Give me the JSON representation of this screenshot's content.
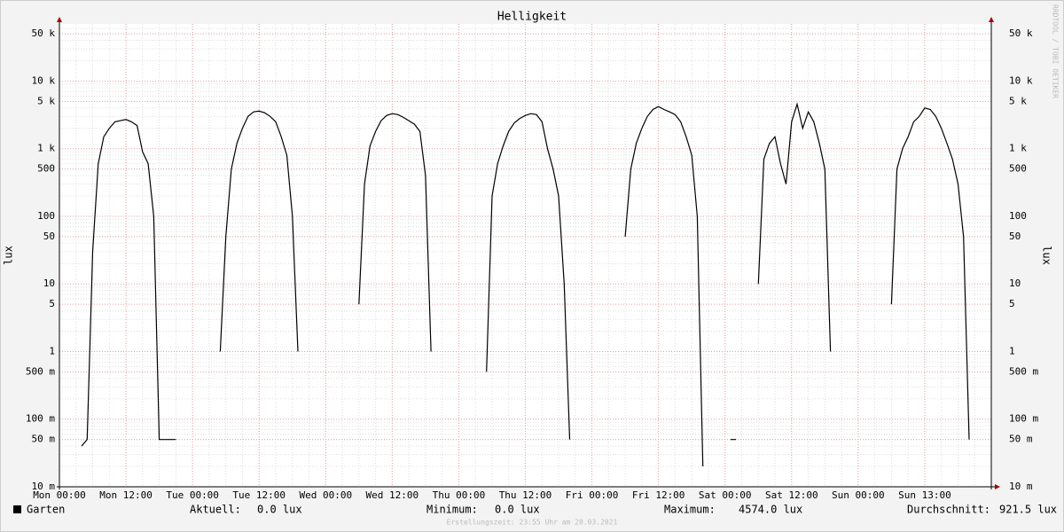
{
  "chart_data": {
    "type": "line",
    "title": "Helligkeit",
    "y_label": "lux",
    "y2_label": "lux",
    "log_y": true,
    "grid": true,
    "ylim": [
      0.01,
      70000
    ],
    "yticks": [
      {
        "value": 0.01,
        "label": "10 m"
      },
      {
        "value": 0.05,
        "label": "50 m"
      },
      {
        "value": 0.1,
        "label": "100 m"
      },
      {
        "value": 0.5,
        "label": "500 m"
      },
      1,
      5,
      10,
      50,
      100,
      500,
      {
        "value": 1000,
        "label": "1 k"
      },
      {
        "value": 5000,
        "label": "5 k"
      },
      {
        "value": 10000,
        "label": "10 k"
      },
      {
        "value": 50000,
        "label": "50 k"
      }
    ],
    "xlim": [
      0,
      168
    ],
    "xticks": [
      {
        "value": 0,
        "label": "Mon 00:00"
      },
      {
        "value": 12,
        "label": "Mon 12:00"
      },
      {
        "value": 24,
        "label": "Tue 00:00"
      },
      {
        "value": 36,
        "label": "Tue 12:00"
      },
      {
        "value": 48,
        "label": "Wed 00:00"
      },
      {
        "value": 60,
        "label": "Wed 12:00"
      },
      {
        "value": 72,
        "label": "Thu 00:00"
      },
      {
        "value": 84,
        "label": "Thu 12:00"
      },
      {
        "value": 96,
        "label": "Fri 00:00"
      },
      {
        "value": 108,
        "label": "Fri 12:00"
      },
      {
        "value": 120,
        "label": "Sat 00:00"
      },
      {
        "value": 132,
        "label": "Sat 12:00"
      },
      {
        "value": 144,
        "label": "Sun 00:00"
      },
      {
        "value": 156,
        "label": "Sun 13:00"
      }
    ],
    "x": [
      0,
      1,
      2,
      3,
      4,
      5,
      6,
      7,
      8,
      9,
      10,
      11,
      12,
      13,
      14,
      15,
      16,
      17,
      18,
      19,
      20,
      21,
      22,
      23,
      24,
      25,
      26,
      27,
      28,
      29,
      30,
      31,
      32,
      33,
      34,
      35,
      36,
      37,
      38,
      39,
      40,
      41,
      42,
      43,
      44,
      45,
      46,
      47,
      48,
      49,
      50,
      51,
      52,
      53,
      54,
      55,
      56,
      57,
      58,
      59,
      60,
      61,
      62,
      63,
      64,
      65,
      66,
      67,
      68,
      69,
      70,
      71,
      72,
      73,
      74,
      75,
      76,
      77,
      78,
      79,
      80,
      81,
      82,
      83,
      84,
      85,
      86,
      87,
      88,
      89,
      90,
      91,
      92,
      93,
      94,
      95,
      96,
      97,
      98,
      99,
      100,
      101,
      102,
      103,
      104,
      105,
      106,
      107,
      108,
      109,
      110,
      111,
      112,
      113,
      114,
      115,
      116,
      117,
      118,
      119,
      120,
      121,
      122,
      123,
      124,
      125,
      126,
      127,
      128,
      129,
      130,
      131,
      132,
      133,
      134,
      135,
      136,
      137,
      138,
      139,
      140,
      141,
      142,
      143,
      144,
      145,
      146,
      147,
      148,
      149,
      150,
      151,
      152,
      153,
      154,
      155,
      156,
      157,
      158,
      159,
      160,
      161,
      162,
      163,
      164,
      165,
      166,
      167
    ],
    "series": [
      {
        "name": "Garten",
        "color": "#000000",
        "values": [
          null,
          null,
          null,
          null,
          0.04,
          0.05,
          30,
          600,
          1500,
          2000,
          2500,
          2600,
          2700,
          2500,
          2200,
          900,
          600,
          100,
          0.05,
          0.05,
          0.05,
          0.05,
          null,
          null,
          null,
          null,
          null,
          null,
          null,
          1,
          50,
          500,
          1200,
          2000,
          3000,
          3500,
          3600,
          3400,
          3000,
          2500,
          1500,
          800,
          100,
          1,
          null,
          null,
          null,
          null,
          null,
          null,
          null,
          null,
          null,
          null,
          5,
          300,
          1100,
          1800,
          2600,
          3100,
          3300,
          3200,
          2900,
          2600,
          2300,
          1800,
          400,
          1,
          null,
          null,
          null,
          null,
          null,
          null,
          null,
          null,
          null,
          0.5,
          200,
          600,
          1100,
          1800,
          2400,
          2800,
          3100,
          3300,
          3200,
          2500,
          1000,
          500,
          200,
          10,
          0.05,
          null,
          null,
          null,
          null,
          null,
          null,
          null,
          null,
          null,
          50,
          500,
          1200,
          2000,
          3000,
          3800,
          4200,
          3800,
          3500,
          3200,
          2500,
          1500,
          800,
          100,
          0.02,
          null,
          null,
          null,
          null,
          0.05,
          0.05,
          null,
          null,
          null,
          10,
          700,
          1200,
          1500,
          600,
          300,
          2500,
          4574,
          2000,
          3500,
          2500,
          1200,
          500,
          1,
          null,
          null,
          null,
          null,
          null,
          null,
          null,
          null,
          null,
          null,
          5,
          500,
          1000,
          1500,
          2500,
          3000,
          4000,
          3800,
          3000,
          2000,
          1200,
          700,
          300,
          50,
          0.05,
          null,
          null,
          null
        ]
      }
    ],
    "stats": [
      {
        "label": "Aktuell:",
        "value": "0.0 lux"
      },
      {
        "label": "Minimum:",
        "value": "0.0 lux"
      },
      {
        "label": "Maximum:",
        "value": "4574.0 lux"
      },
      {
        "label": "Durchschnitt:",
        "value": "921.5 lux"
      }
    ],
    "watermark": "RRDTOOL / TOBI OETIKER",
    "footer": "Erstellungszeit: 23:55 Uhr am 28.03.2021"
  }
}
